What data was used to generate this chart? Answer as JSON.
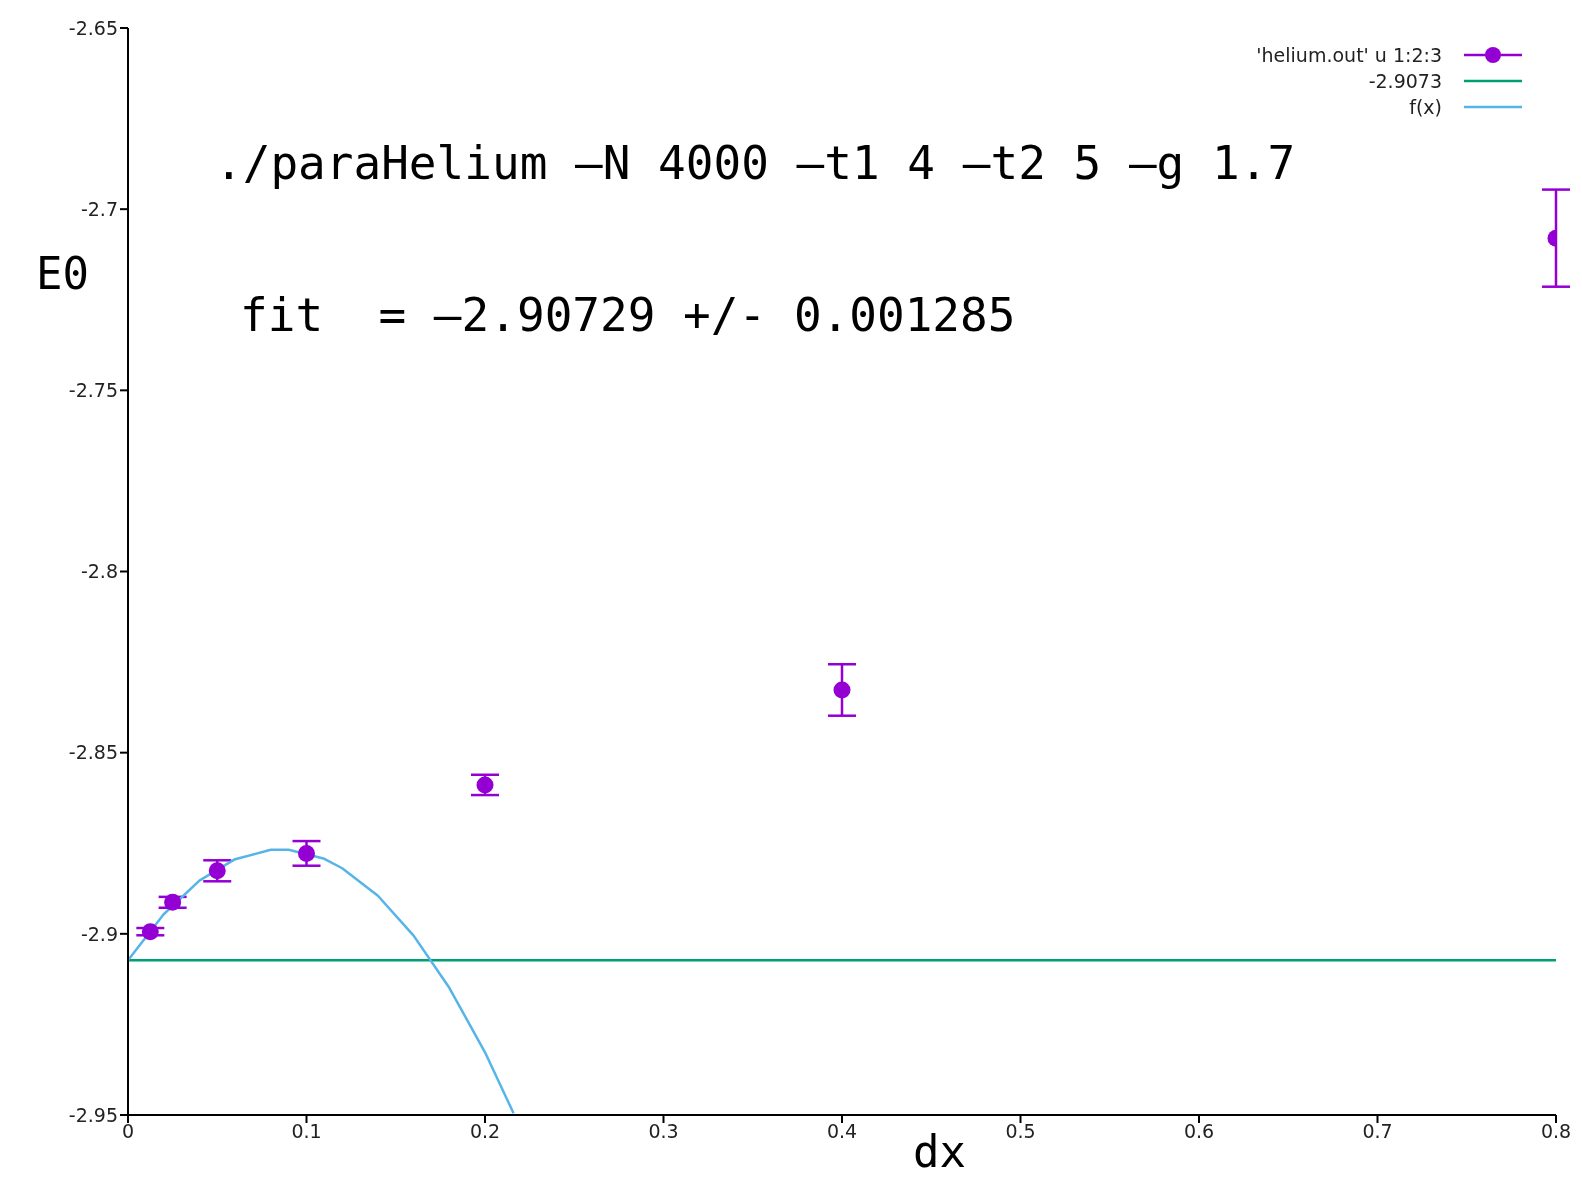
{
  "chart_data": {
    "type": "scatter",
    "xlabel": "dx",
    "ylabel": "E0",
    "annotations": [
      "./paraHelium –N 4000 –t1 4 –t2 5 –g 1.7",
      "fit  = –2.90729 +/- 0.001285"
    ],
    "xlim": [
      0,
      0.8
    ],
    "xticks": [
      0,
      0.1,
      0.2,
      0.3,
      0.4,
      0.5,
      0.6,
      0.7,
      0.8
    ],
    "ylim": [
      -2.95,
      -2.65
    ],
    "yticks": [
      -2.95,
      -2.9,
      -2.85,
      -2.8,
      -2.75,
      -2.7,
      -2.65
    ],
    "grid": false,
    "legend": "top right",
    "series": [
      {
        "name": "'helium.out' u 1:2:3",
        "marker": "circle",
        "color": "#9400d3",
        "x": [
          0.0125,
          0.025,
          0.05,
          0.1,
          0.2,
          0.4,
          0.8
        ],
        "values": [
          -2.8994,
          -2.8913,
          -2.8826,
          -2.8778,
          -2.8589,
          -2.8327,
          -2.708
        ],
        "errors": [
          0.001,
          0.0015,
          0.0029,
          0.0034,
          0.0028,
          0.0071,
          0.0134
        ]
      },
      {
        "name": "-2.9073",
        "type": "line",
        "marker": "none",
        "color": "#009e73",
        "line_style": "solid",
        "x": [
          0,
          0.8
        ],
        "values": [
          -2.9073,
          -2.9073
        ]
      },
      {
        "name": "f(x)",
        "type": "line",
        "marker": "none",
        "color": "#56b4e9",
        "line_style": "solid",
        "x": [
          0,
          0.02,
          0.04,
          0.06,
          0.08,
          0.09,
          0.11,
          0.12,
          0.14,
          0.16,
          0.18,
          0.2,
          0.216
        ],
        "values": [
          -2.9073,
          -2.8946,
          -2.8853,
          -2.8794,
          -2.8768,
          -2.8768,
          -2.8793,
          -2.8819,
          -2.8895,
          -2.9005,
          -2.9149,
          -2.9327,
          -2.9495
        ]
      }
    ]
  }
}
